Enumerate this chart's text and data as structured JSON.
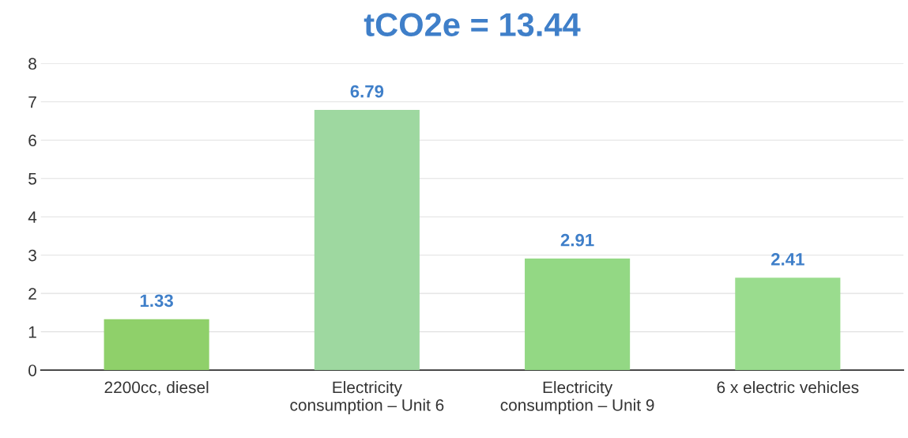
{
  "chart_data": {
    "type": "bar",
    "title": "tCO2e = 13.44",
    "categories": [
      "2200cc, diesel",
      "Electricity\nconsumption – Unit 6",
      "Electricity\nconsumption – Unit 9",
      "6 x electric vehicles"
    ],
    "values": [
      1.33,
      6.79,
      2.91,
      2.41
    ],
    "colors": [
      "#8fd06a",
      "#9ed8a0",
      "#93d884",
      "#9adc8e"
    ],
    "data_labels": true,
    "ylim": [
      0,
      8
    ],
    "yticks": [
      0,
      1,
      2,
      3,
      4,
      5,
      6,
      7,
      8
    ],
    "grid": "y"
  }
}
